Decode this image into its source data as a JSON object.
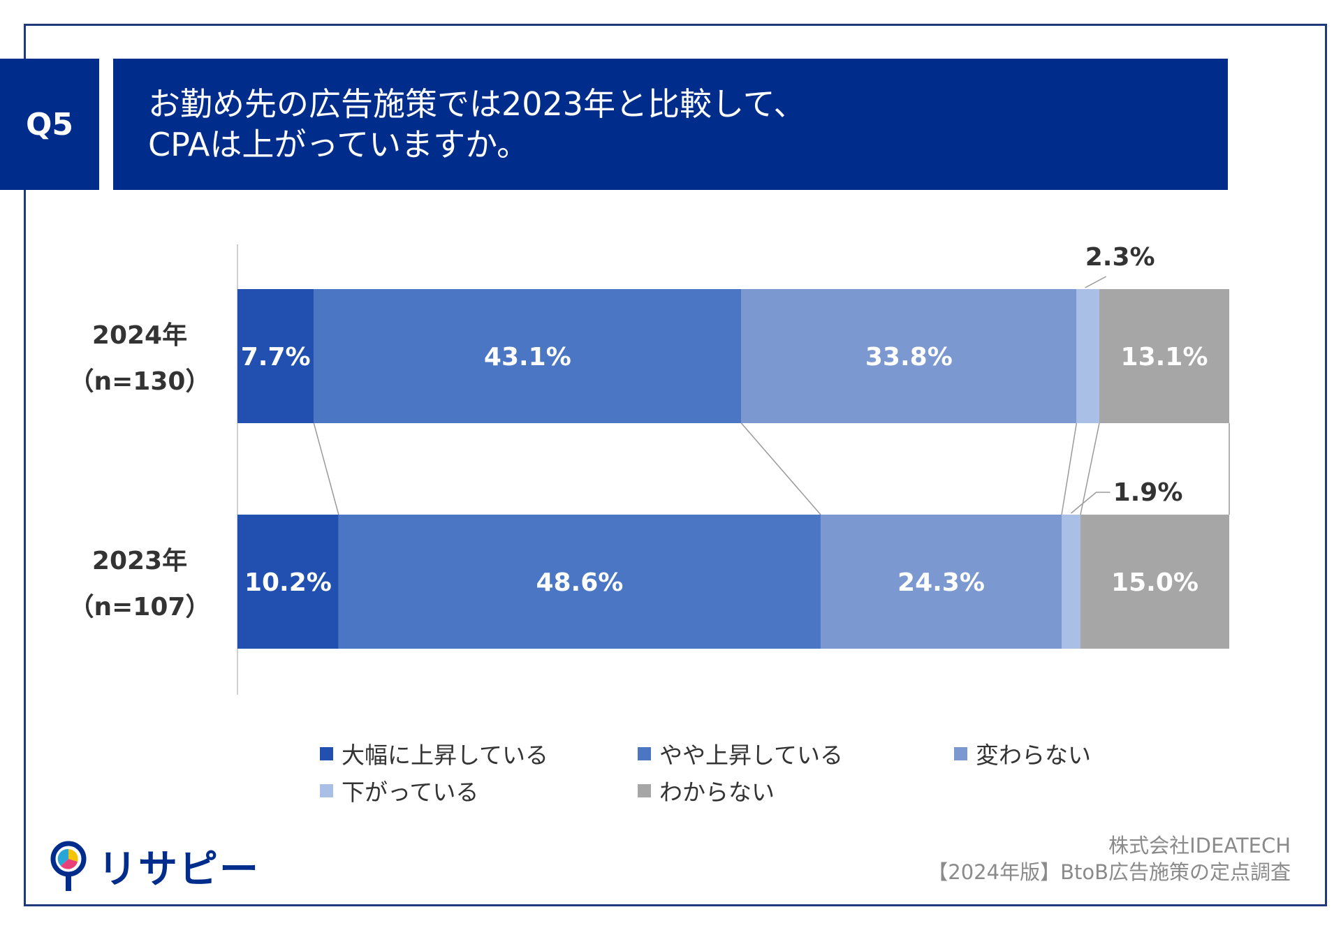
{
  "question": {
    "badge": "Q5",
    "line1": "お勤め先の広告施策では2023年と比較して、",
    "line2": "CPAは上がっていますか。"
  },
  "colors": {
    "banner": "#002c8c",
    "series": [
      "#2150b0",
      "#4a76c4",
      "#7c98d0",
      "#a9bfe6",
      "#a6a6a6"
    ]
  },
  "chart_data": {
    "type": "bar",
    "orientation": "horizontal",
    "stacked": true,
    "percent_stacked": true,
    "categories": [
      {
        "label": "2024年",
        "n": "（n=130）"
      },
      {
        "label": "2023年",
        "n": "（n=107）"
      }
    ],
    "series": [
      {
        "name": "大幅に上昇している",
        "values": [
          7.7,
          10.2
        ],
        "labels": [
          "7.7%",
          "10.2%"
        ]
      },
      {
        "name": "やや上昇している",
        "values": [
          43.1,
          48.6
        ],
        "labels": [
          "43.1%",
          "48.6%"
        ]
      },
      {
        "name": "変わらない",
        "values": [
          33.8,
          24.3
        ],
        "labels": [
          "33.8%",
          "24.3%"
        ]
      },
      {
        "name": "下がっている",
        "values": [
          2.3,
          1.9
        ],
        "labels": [
          "2.3%",
          "1.9%"
        ]
      },
      {
        "name": "わからない",
        "values": [
          13.1,
          15.0
        ],
        "labels": [
          "13.1%",
          "15.0%"
        ]
      }
    ],
    "xlim": [
      0,
      100
    ],
    "legend": "bottom",
    "grid": false,
    "series_lines": true
  },
  "logo": {
    "text": "リサピー"
  },
  "source": {
    "line1": "株式会社IDEATECH",
    "line2": "【2024年版】BtoB広告施策の定点調査"
  }
}
